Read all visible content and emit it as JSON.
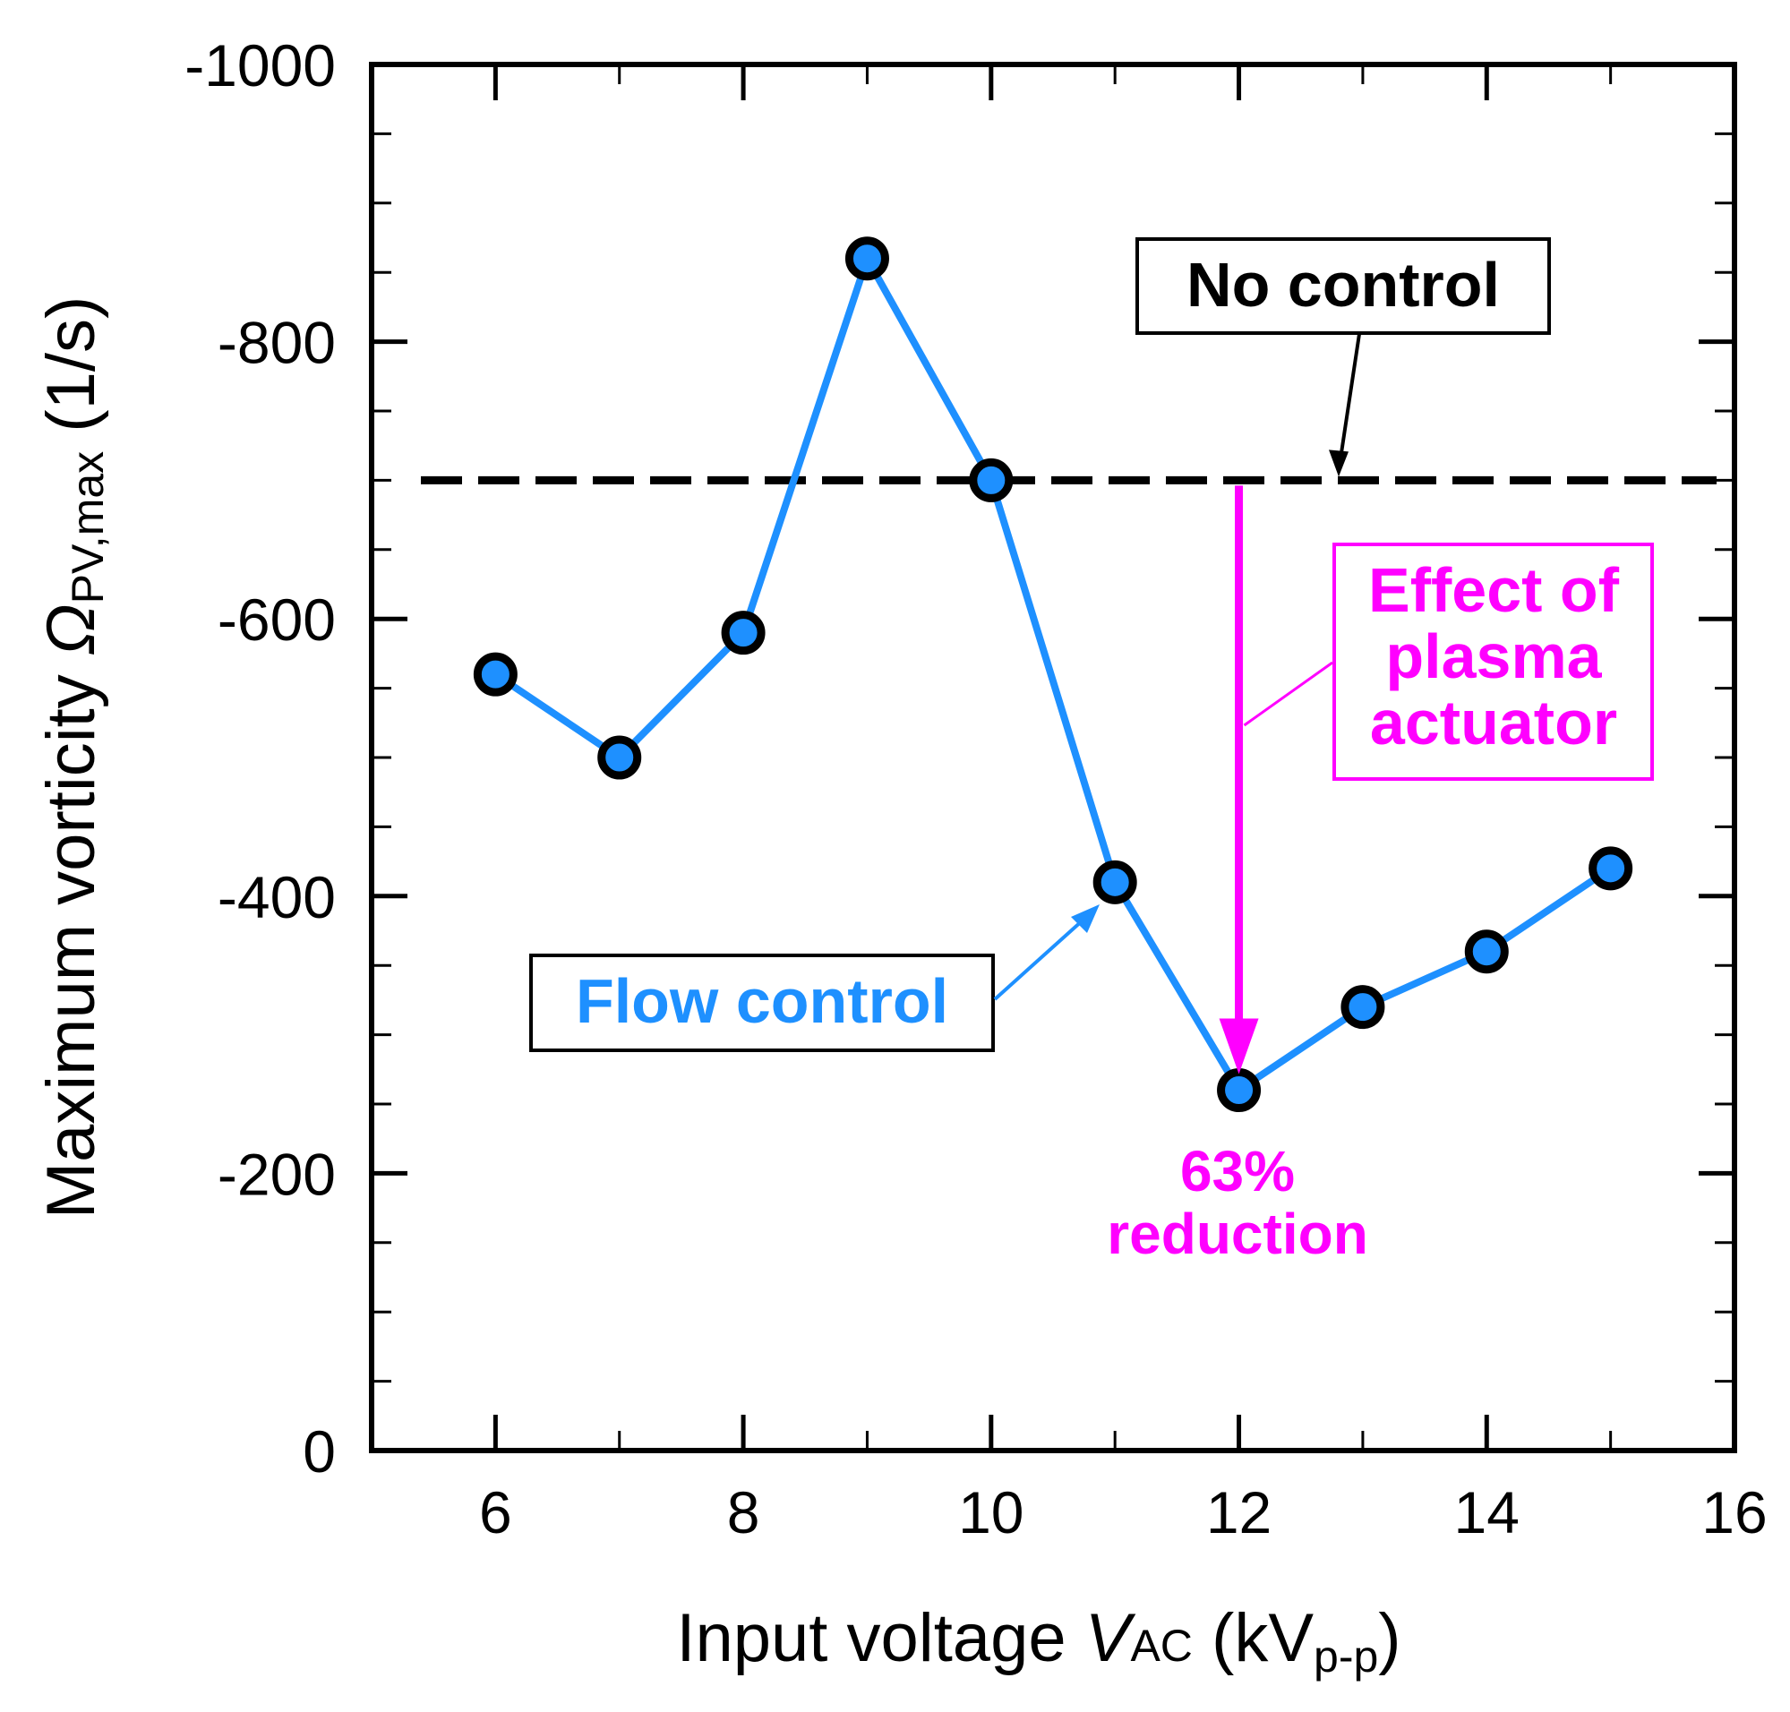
{
  "chart_data": {
    "type": "line",
    "xlabel": {
      "main": "Input voltage ",
      "var": "V",
      "sub": "AC",
      "unit_open": " (kV",
      "unit_sub": "p-p",
      "unit_close": ")"
    },
    "ylabel": {
      "main": "Maximum vorticity ",
      "var": "Ω",
      "sub": "PV,max",
      "unit": " (1/s)"
    },
    "xlim": [
      5,
      16
    ],
    "ylim": [
      0,
      -1000
    ],
    "x_ticks": [
      6,
      8,
      10,
      12,
      14,
      16
    ],
    "y_ticks": [
      0,
      -200,
      -400,
      -600,
      -800,
      -1000
    ],
    "x_minor_step": 1,
    "y_minor_step": 50,
    "series": [
      {
        "name": "Flow control",
        "x": [
          6,
          7,
          8,
          9,
          10,
          11,
          12,
          13,
          14,
          15
        ],
        "values": [
          -560,
          -500,
          -590,
          -860,
          -700,
          -410,
          -260,
          -320,
          -360,
          -420
        ],
        "color": "#1e90ff"
      }
    ],
    "reference_line": {
      "name": "No control",
      "value": -700,
      "style": "dashed",
      "color": "#000000"
    },
    "annotations": {
      "no_control_label": "No control",
      "flow_control_label": "Flow control",
      "effect_label": [
        "Effect of",
        "plasma",
        "actuator"
      ],
      "reduction_label": [
        "63%",
        "reduction"
      ],
      "reduction_x": 12,
      "accent_color": "#ff00ff"
    }
  }
}
